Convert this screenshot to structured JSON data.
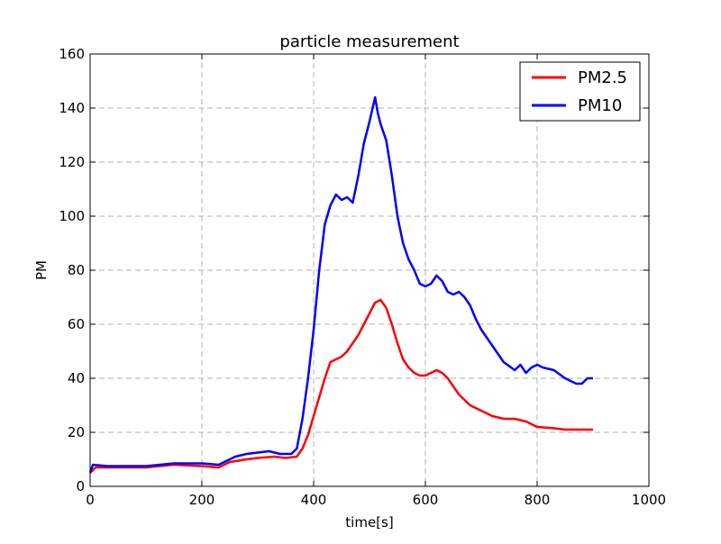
{
  "chart_data": {
    "type": "line",
    "title": "particle measurement",
    "xlabel": "time[s]",
    "ylabel": "PM",
    "xlim": [
      0,
      1000
    ],
    "ylim": [
      0,
      160
    ],
    "xticks": [
      0,
      200,
      400,
      600,
      800,
      1000
    ],
    "yticks": [
      0,
      20,
      40,
      60,
      80,
      100,
      120,
      140,
      160
    ],
    "grid": true,
    "legend": "top-right",
    "series": [
      {
        "name": "PM2.5",
        "color": "#ff0000",
        "points": [
          [
            0,
            5
          ],
          [
            10,
            7
          ],
          [
            30,
            7
          ],
          [
            60,
            7
          ],
          [
            100,
            7
          ],
          [
            150,
            8
          ],
          [
            200,
            7.5
          ],
          [
            230,
            7
          ],
          [
            250,
            9
          ],
          [
            280,
            10
          ],
          [
            300,
            10.5
          ],
          [
            330,
            11
          ],
          [
            350,
            10.5
          ],
          [
            370,
            11
          ],
          [
            380,
            14
          ],
          [
            390,
            19
          ],
          [
            400,
            26
          ],
          [
            410,
            33
          ],
          [
            420,
            40
          ],
          [
            430,
            46
          ],
          [
            440,
            47
          ],
          [
            450,
            48
          ],
          [
            460,
            50
          ],
          [
            470,
            53
          ],
          [
            480,
            56
          ],
          [
            490,
            60
          ],
          [
            500,
            64
          ],
          [
            510,
            68
          ],
          [
            520,
            69
          ],
          [
            530,
            66
          ],
          [
            540,
            60
          ],
          [
            550,
            53
          ],
          [
            560,
            47
          ],
          [
            570,
            44
          ],
          [
            580,
            42
          ],
          [
            590,
            41
          ],
          [
            600,
            41
          ],
          [
            610,
            42
          ],
          [
            620,
            43
          ],
          [
            630,
            42
          ],
          [
            640,
            40
          ],
          [
            650,
            37
          ],
          [
            660,
            34
          ],
          [
            670,
            32
          ],
          [
            680,
            30
          ],
          [
            690,
            29
          ],
          [
            700,
            28
          ],
          [
            720,
            26
          ],
          [
            740,
            25
          ],
          [
            760,
            25
          ],
          [
            780,
            24
          ],
          [
            800,
            22
          ],
          [
            830,
            21.5
          ],
          [
            850,
            21
          ],
          [
            880,
            21
          ],
          [
            900,
            21
          ]
        ]
      },
      {
        "name": "PM10",
        "color": "#0000ff",
        "points": [
          [
            0,
            5
          ],
          [
            5,
            8
          ],
          [
            30,
            7.5
          ],
          [
            60,
            7.5
          ],
          [
            100,
            7.5
          ],
          [
            150,
            8.5
          ],
          [
            200,
            8.5
          ],
          [
            230,
            8
          ],
          [
            250,
            10
          ],
          [
            260,
            11
          ],
          [
            280,
            12
          ],
          [
            300,
            12.5
          ],
          [
            320,
            13
          ],
          [
            340,
            12
          ],
          [
            360,
            12
          ],
          [
            370,
            14
          ],
          [
            380,
            25
          ],
          [
            390,
            40
          ],
          [
            400,
            58
          ],
          [
            410,
            80
          ],
          [
            420,
            97
          ],
          [
            430,
            104
          ],
          [
            440,
            108
          ],
          [
            450,
            106
          ],
          [
            460,
            107
          ],
          [
            470,
            105
          ],
          [
            480,
            115
          ],
          [
            490,
            127
          ],
          [
            500,
            135
          ],
          [
            510,
            144
          ],
          [
            515,
            138
          ],
          [
            520,
            134
          ],
          [
            530,
            128
          ],
          [
            540,
            115
          ],
          [
            550,
            100
          ],
          [
            560,
            90
          ],
          [
            570,
            84
          ],
          [
            580,
            80
          ],
          [
            590,
            75
          ],
          [
            600,
            74
          ],
          [
            610,
            75
          ],
          [
            620,
            78
          ],
          [
            630,
            76
          ],
          [
            640,
            72
          ],
          [
            650,
            71
          ],
          [
            660,
            72
          ],
          [
            670,
            70
          ],
          [
            680,
            67
          ],
          [
            690,
            62
          ],
          [
            700,
            58
          ],
          [
            710,
            55
          ],
          [
            720,
            52
          ],
          [
            740,
            46
          ],
          [
            760,
            43
          ],
          [
            770,
            45
          ],
          [
            780,
            42
          ],
          [
            790,
            44
          ],
          [
            800,
            45
          ],
          [
            810,
            44
          ],
          [
            830,
            43
          ],
          [
            850,
            40
          ],
          [
            870,
            38
          ],
          [
            880,
            38
          ],
          [
            890,
            40
          ],
          [
            900,
            40
          ]
        ]
      }
    ]
  }
}
